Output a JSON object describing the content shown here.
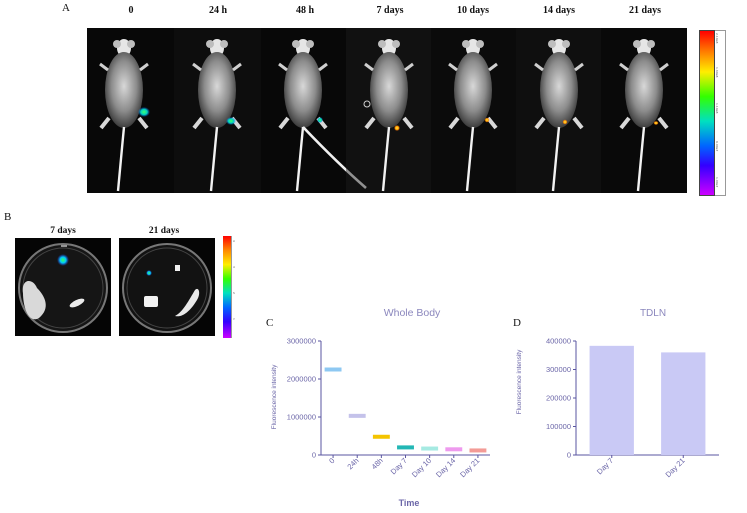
{
  "panel_labels": {
    "a": "A",
    "b": "B",
    "c": "C",
    "d": "D"
  },
  "panelA": {
    "timepoints": [
      "0",
      "24 h",
      "48 h",
      "7 days",
      "10 days",
      "14 days",
      "21 days"
    ],
    "scale_ticks": [
      "2.10e8",
      "1.60e8",
      "1.10e8",
      "6.00e7",
      "1.00e7"
    ],
    "scale_colors": [
      "#ff0000",
      "#ff7700",
      "#ffee00",
      "#33ff00",
      "#00e0c0",
      "#0066ff",
      "#3300ff",
      "#cc00ff"
    ]
  },
  "panelB": {
    "timepoints": [
      "7 days",
      "21 days"
    ],
    "scale_ticks": [
      "4",
      "3",
      "2",
      "1"
    ]
  },
  "chart_data": [
    {
      "id": "C",
      "type": "bar",
      "title": "Whole Body",
      "xlabel": "Time",
      "ylabel": "Fluorescence intensity",
      "categories": [
        "0",
        "24h",
        "48h",
        "Day 7",
        "Day 10",
        "Day 14",
        "Day 21"
      ],
      "values": [
        2250000,
        1030000,
        480000,
        200000,
        170000,
        150000,
        120000
      ],
      "colors": [
        "#8ec8f2",
        "#c4c2ea",
        "#f4c400",
        "#23b7b5",
        "#a6eae2",
        "#ee9aee",
        "#f39b96"
      ],
      "ylim": [
        0,
        3000000
      ],
      "yticks": [
        "0",
        "1000000",
        "2000000",
        "3000000"
      ],
      "grid": false
    },
    {
      "id": "D",
      "type": "bar",
      "title": "TDLN",
      "xlabel": "",
      "ylabel": "Fluorescence intensity",
      "categories": [
        "Day 7",
        "Day 21"
      ],
      "values": [
        383000,
        360000
      ],
      "colors": [
        "#c9c9f5",
        "#c9c9f5"
      ],
      "ylim": [
        0,
        400000
      ],
      "yticks": [
        "0",
        "100000",
        "200000",
        "300000",
        "400000"
      ],
      "grid": false
    }
  ]
}
